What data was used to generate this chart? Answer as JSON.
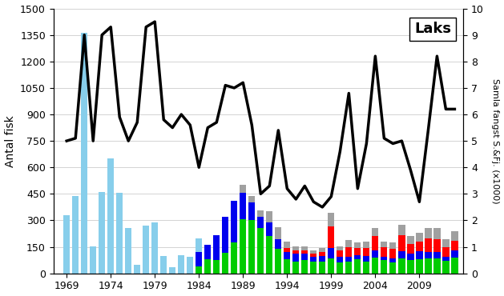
{
  "title": "Laks",
  "ylabel_left": "Antal fisk",
  "ylabel_right": "Samla fangst S.&Fj. (x1000)",
  "ylim_left": [
    0,
    1500
  ],
  "ylim_right": [
    0,
    10
  ],
  "yticks_left": [
    0,
    150,
    300,
    450,
    600,
    750,
    900,
    1050,
    1200,
    1350,
    1500
  ],
  "yticks_right": [
    0,
    1,
    2,
    3,
    4,
    5,
    6,
    7,
    8,
    9,
    10
  ],
  "years": [
    1969,
    1970,
    1971,
    1972,
    1973,
    1974,
    1975,
    1976,
    1977,
    1978,
    1979,
    1980,
    1981,
    1982,
    1983,
    1984,
    1985,
    1986,
    1987,
    1988,
    1989,
    1990,
    1991,
    1992,
    1993,
    1994,
    1995,
    1996,
    1997,
    1998,
    1999,
    2000,
    2001,
    2002,
    2003,
    2004,
    2005,
    2006,
    2007,
    2008,
    2009,
    2010,
    2011,
    2012,
    2013
  ],
  "bar_lightblue": [
    330,
    440,
    1360,
    155,
    460,
    650,
    455,
    255,
    50,
    270,
    290,
    100,
    35,
    105,
    95,
    200,
    115,
    110,
    95,
    0,
    0,
    0,
    0,
    0,
    0,
    0,
    0,
    0,
    0,
    0,
    0,
    0,
    0,
    0,
    0,
    0,
    0,
    0,
    0,
    0,
    0,
    0,
    0,
    0,
    0
  ],
  "bar_green": [
    0,
    0,
    0,
    0,
    0,
    0,
    0,
    0,
    0,
    0,
    0,
    0,
    0,
    0,
    0,
    40,
    80,
    75,
    115,
    175,
    305,
    300,
    255,
    210,
    140,
    80,
    65,
    75,
    65,
    65,
    85,
    60,
    65,
    80,
    65,
    90,
    75,
    60,
    85,
    75,
    80,
    85,
    85,
    70,
    90
  ],
  "bar_blue": [
    0,
    0,
    0,
    0,
    0,
    0,
    0,
    0,
    0,
    0,
    0,
    0,
    0,
    0,
    0,
    80,
    80,
    140,
    205,
    235,
    150,
    100,
    65,
    80,
    55,
    40,
    45,
    35,
    30,
    35,
    60,
    35,
    30,
    25,
    35,
    40,
    20,
    25,
    40,
    35,
    45,
    35,
    35,
    25,
    40
  ],
  "bar_red": [
    0,
    0,
    0,
    0,
    0,
    0,
    0,
    0,
    0,
    0,
    0,
    0,
    0,
    0,
    0,
    0,
    0,
    0,
    0,
    0,
    0,
    0,
    0,
    0,
    0,
    25,
    20,
    20,
    15,
    20,
    120,
    35,
    55,
    40,
    45,
    80,
    55,
    55,
    90,
    55,
    55,
    80,
    75,
    55,
    55
  ],
  "bar_gray": [
    0,
    0,
    0,
    0,
    0,
    0,
    0,
    0,
    0,
    0,
    0,
    0,
    0,
    0,
    0,
    0,
    0,
    0,
    0,
    0,
    45,
    40,
    35,
    60,
    65,
    35,
    25,
    25,
    20,
    25,
    80,
    25,
    40,
    30,
    35,
    45,
    30,
    35,
    60,
    45,
    50,
    55,
    60,
    45,
    55
  ],
  "line_values": [
    5.0,
    5.1,
    9.0,
    5.0,
    9.0,
    9.3,
    5.9,
    5.0,
    5.7,
    9.3,
    9.5,
    5.8,
    5.5,
    6.0,
    5.6,
    4.0,
    5.5,
    5.7,
    7.1,
    7.0,
    7.2,
    5.6,
    3.0,
    3.3,
    5.4,
    3.2,
    2.8,
    3.3,
    2.7,
    2.5,
    2.9,
    4.6,
    6.8,
    3.2,
    4.9,
    8.2,
    5.1,
    4.9,
    5.0,
    3.9,
    2.7,
    5.4,
    8.2,
    6.2,
    6.2
  ],
  "colors": {
    "lightblue": "#87CEEB",
    "green": "#00CC00",
    "blue": "#0000EE",
    "red": "#FF0000",
    "gray": "#A0A0A0",
    "line": "#000000"
  },
  "xtick_labels": [
    "1969",
    "1974",
    "1979",
    "1984",
    "1989",
    "1994",
    "1999",
    "2004",
    "2009"
  ],
  "xtick_positions": [
    1969,
    1974,
    1979,
    1984,
    1989,
    1994,
    1999,
    2004,
    2009
  ],
  "background_color": "#FFFFFF"
}
